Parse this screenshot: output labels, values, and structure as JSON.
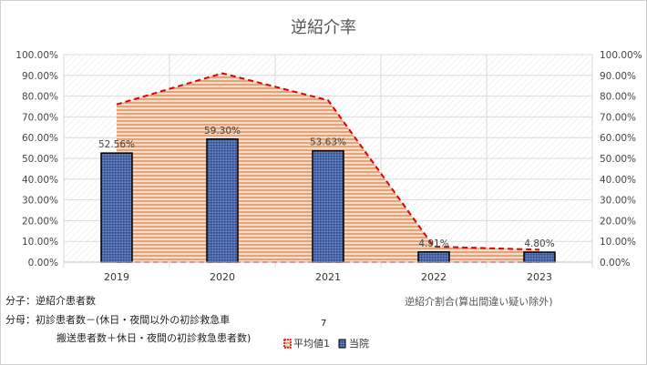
{
  "chart_data": {
    "type": "bar",
    "title": "逆紹介率",
    "categories": [
      "2019",
      "2020",
      "2021",
      "2022",
      "2023"
    ],
    "series": [
      {
        "name": "当院",
        "values": [
          52.56,
          59.3,
          53.63,
          4.91,
          4.8
        ],
        "labels": [
          "52.56%",
          "59.30%",
          "53.63%",
          "4.91%",
          "4.80%"
        ],
        "color": "#3f5fa0"
      },
      {
        "name": "平均値1",
        "values": [
          76,
          91,
          78,
          7.5,
          6
        ],
        "type": "area",
        "color": "#e0a070",
        "line_color": "#e00000"
      }
    ],
    "ylim": [
      0,
      100
    ],
    "yticks": [
      "0.00%",
      "10.00%",
      "20.00%",
      "30.00%",
      "40.00%",
      "50.00%",
      "60.00%",
      "70.00%",
      "80.00%",
      "90.00%",
      "100.00%"
    ],
    "secondary_axis": "right, same scale",
    "grid": true,
    "legend": "bottom"
  },
  "notes": {
    "numerator": "分子：逆紹介患者数",
    "denominator_line1": "分母：初診患者数－(休日・夜間以外の初診救急車",
    "denominator_line2": "搬送患者数＋休日・夜間の初診救急患者数)",
    "box_text": "逆紹介割合(算出間違い疑い除外)",
    "stray_number": "7"
  }
}
